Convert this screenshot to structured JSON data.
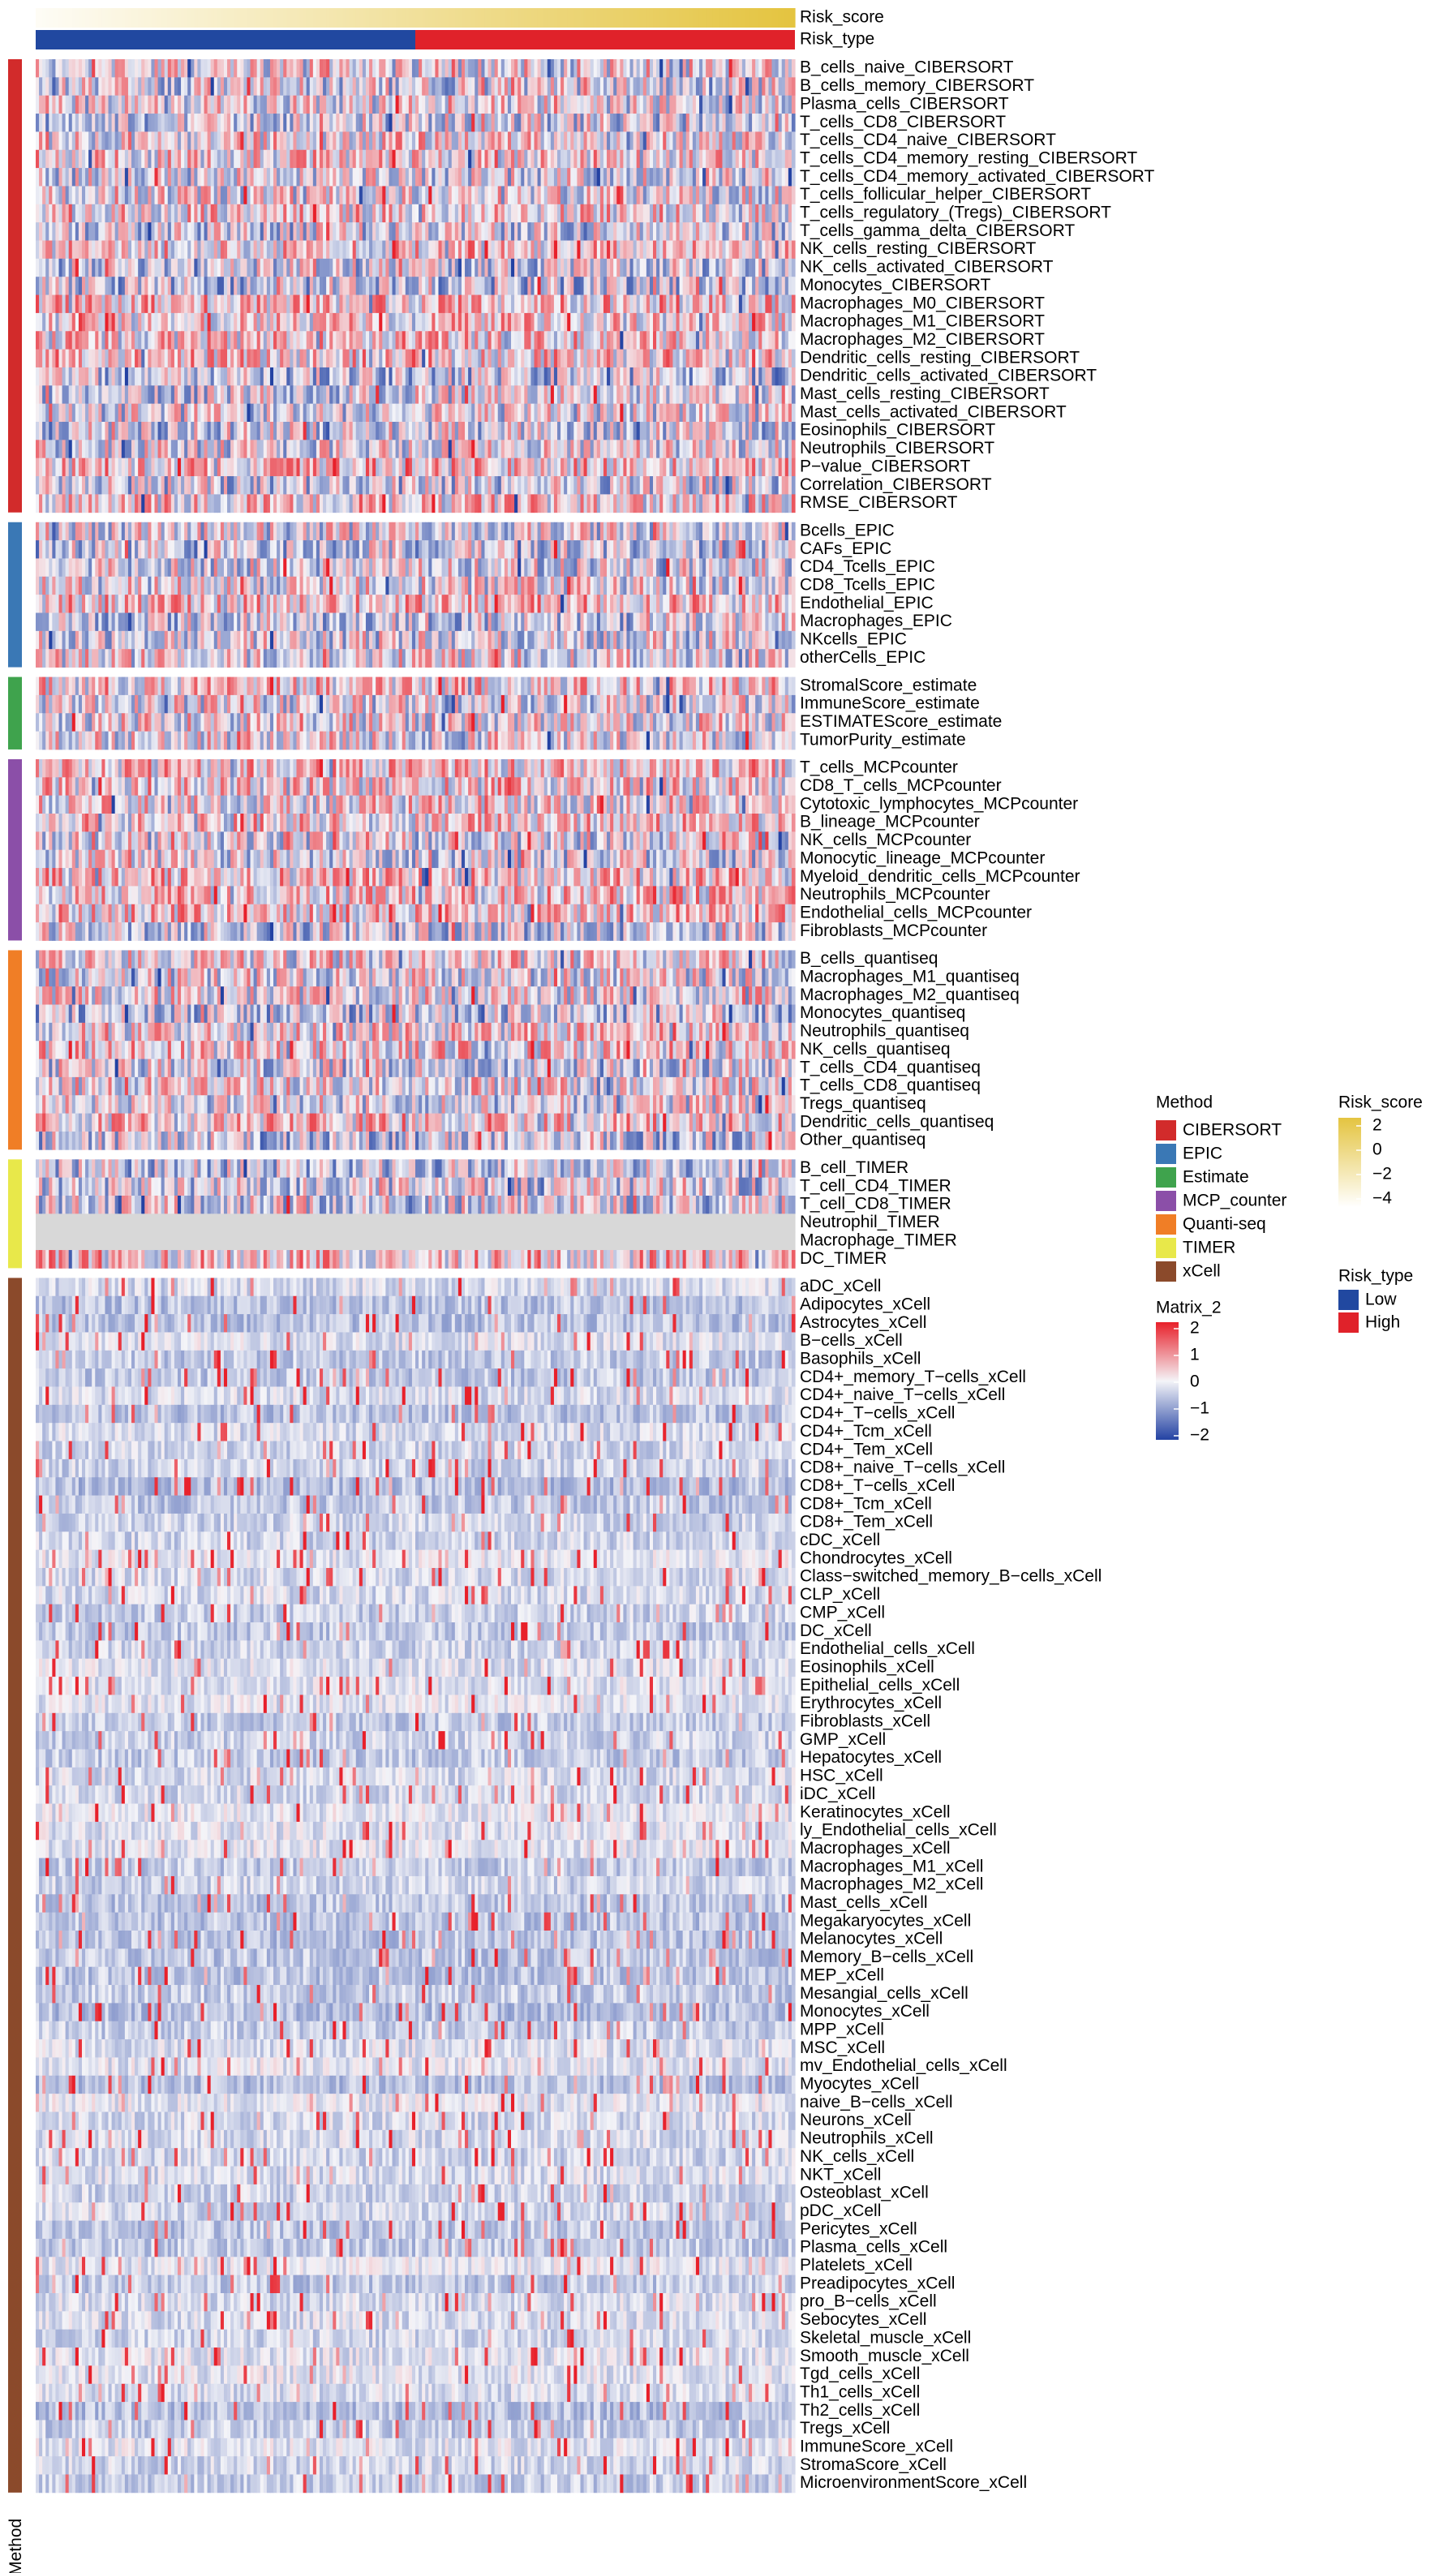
{
  "chart_data": {
    "type": "heatmap",
    "title": "",
    "n_samples": 230,
    "top_annotations": [
      {
        "name": "Risk_score",
        "type": "gradient"
      },
      {
        "name": "Risk_type",
        "type": "categorical",
        "split": [
          [
            "Low",
            0.5
          ],
          [
            "High",
            0.5
          ]
        ]
      }
    ],
    "row_groups": [
      {
        "method": "CIBERSORT",
        "color": "#D22B2B",
        "rows": [
          "B_cells_naive_CIBERSORT",
          "B_cells_memory_CIBERSORT",
          "Plasma_cells_CIBERSORT",
          "T_cells_CD8_CIBERSORT",
          "T_cells_CD4_naive_CIBERSORT",
          "T_cells_CD4_memory_resting_CIBERSORT",
          "T_cells_CD4_memory_activated_CIBERSORT",
          "T_cells_follicular_helper_CIBERSORT",
          "T_cells_regulatory_(Tregs)_CIBERSORT",
          "T_cells_gamma_delta_CIBERSORT",
          "NK_cells_resting_CIBERSORT",
          "NK_cells_activated_CIBERSORT",
          "Monocytes_CIBERSORT",
          "Macrophages_M0_CIBERSORT",
          "Macrophages_M1_CIBERSORT",
          "Macrophages_M2_CIBERSORT",
          "Dendritic_cells_resting_CIBERSORT",
          "Dendritic_cells_activated_CIBERSORT",
          "Mast_cells_resting_CIBERSORT",
          "Mast_cells_activated_CIBERSORT",
          "Eosinophils_CIBERSORT",
          "Neutrophils_CIBERSORT",
          "P−value_CIBERSORT",
          "Correlation_CIBERSORT",
          "RMSE_CIBERSORT"
        ]
      },
      {
        "method": "EPIC",
        "color": "#3A78B5",
        "rows": [
          "Bcells_EPIC",
          "CAFs_EPIC",
          "CD4_Tcells_EPIC",
          "CD8_Tcells_EPIC",
          "Endothelial_EPIC",
          "Macrophages_EPIC",
          "NKcells_EPIC",
          "otherCells_EPIC"
        ]
      },
      {
        "method": "Estimate",
        "color": "#3FA34D",
        "rows": [
          "StromalScore_estimate",
          "ImmuneScore_estimate",
          "ESTIMATEScore_estimate",
          "TumorPurity_estimate"
        ]
      },
      {
        "method": "MCP_counter",
        "color": "#8B4FA8",
        "rows": [
          "T_cells_MCPcounter",
          "CD8_T_cells_MCPcounter",
          "Cytotoxic_lymphocytes_MCPcounter",
          "B_lineage_MCPcounter",
          "NK_cells_MCPcounter",
          "Monocytic_lineage_MCPcounter",
          "Myeloid_dendritic_cells_MCPcounter",
          "Neutrophils_MCPcounter",
          "Endothelial_cells_MCPcounter",
          "Fibroblasts_MCPcounter"
        ]
      },
      {
        "method": "Quanti-seq",
        "color": "#F07E26",
        "rows": [
          "B_cells_quantiseq",
          "Macrophages_M1_quantiseq",
          "Macrophages_M2_quantiseq",
          "Monocytes_quantiseq",
          "Neutrophils_quantiseq",
          "NK_cells_quantiseq",
          "T_cells_CD4_quantiseq",
          "T_cells_CD8_quantiseq",
          "Tregs_quantiseq",
          "Dendritic_cells_quantiseq",
          "Other_quantiseq"
        ]
      },
      {
        "method": "TIMER",
        "color": "#E8E84A",
        "rows": [
          "B_cell_TIMER",
          "T_cell_CD4_TIMER",
          "T_cell_CD8_TIMER",
          "Neutrophil_TIMER",
          "Macrophage_TIMER",
          "DC_TIMER"
        ]
      },
      {
        "method": "xCell",
        "color": "#8B4A2B",
        "rows": [
          "aDC_xCell",
          "Adipocytes_xCell",
          "Astrocytes_xCell",
          "B−cells_xCell",
          "Basophils_xCell",
          "CD4+_memory_T−cells_xCell",
          "CD4+_naive_T−cells_xCell",
          "CD4+_T−cells_xCell",
          "CD4+_Tcm_xCell",
          "CD4+_Tem_xCell",
          "CD8+_naive_T−cells_xCell",
          "CD8+_T−cells_xCell",
          "CD8+_Tcm_xCell",
          "CD8+_Tem_xCell",
          "cDC_xCell",
          "Chondrocytes_xCell",
          "Class−switched_memory_B−cells_xCell",
          "CLP_xCell",
          "CMP_xCell",
          "DC_xCell",
          "Endothelial_cells_xCell",
          "Eosinophils_xCell",
          "Epithelial_cells_xCell",
          "Erythrocytes_xCell",
          "Fibroblasts_xCell",
          "GMP_xCell",
          "Hepatocytes_xCell",
          "HSC_xCell",
          "iDC_xCell",
          "Keratinocytes_xCell",
          "ly_Endothelial_cells_xCell",
          "Macrophages_xCell",
          "Macrophages_M1_xCell",
          "Macrophages_M2_xCell",
          "Mast_cells_xCell",
          "Megakaryocytes_xCell",
          "Melanocytes_xCell",
          "Memory_B−cells_xCell",
          "MEP_xCell",
          "Mesangial_cells_xCell",
          "Monocytes_xCell",
          "MPP_xCell",
          "MSC_xCell",
          "mv_Endothelial_cells_xCell",
          "Myocytes_xCell",
          "naive_B−cells_xCell",
          "Neurons_xCell",
          "Neutrophils_xCell",
          "NK_cells_xCell",
          "NKT_xCell",
          "Osteoblast_xCell",
          "pDC_xCell",
          "Pericytes_xCell",
          "Plasma_cells_xCell",
          "Platelets_xCell",
          "Preadipocytes_xCell",
          "pro_B−cells_xCell",
          "Sebocytes_xCell",
          "Skeletal_muscle_xCell",
          "Smooth_muscle_xCell",
          "Tgd_cells_xCell",
          "Th1_cells_xCell",
          "Th2_cells_xCell",
          "Tregs_xCell",
          "ImmuneScore_xCell",
          "StromaScore_xCell",
          "MicroenvironmentScore_xCell"
        ]
      }
    ],
    "row_annotation_title": "Method",
    "legends": {
      "method": {
        "title": "Method",
        "items": [
          {
            "label": "CIBERSORT",
            "color": "#D22B2B"
          },
          {
            "label": "EPIC",
            "color": "#3A78B5"
          },
          {
            "label": "Estimate",
            "color": "#3FA34D"
          },
          {
            "label": "MCP_counter",
            "color": "#8B4FA8"
          },
          {
            "label": "Quanti-seq",
            "color": "#F07E26"
          },
          {
            "label": "TIMER",
            "color": "#E8E84A"
          },
          {
            "label": "xCell",
            "color": "#8B4A2B"
          }
        ]
      },
      "risk_score": {
        "title": "Risk_score",
        "ticks": [
          "2",
          "0",
          "−2",
          "−4"
        ],
        "colors": [
          "#E4C440",
          "#FFFFFF"
        ]
      },
      "risk_type": {
        "title": "Risk_type",
        "items": [
          {
            "label": "Low",
            "color": "#2148A0"
          },
          {
            "label": "High",
            "color": "#E0222A"
          }
        ]
      },
      "matrix": {
        "title": "Matrix_2",
        "ticks": [
          "2",
          "1",
          "0",
          "−1",
          "−2"
        ],
        "colors": [
          "#E8202A",
          "#F4F4F8",
          "#2342A3"
        ]
      }
    },
    "value_range": [
      -2,
      2
    ]
  }
}
